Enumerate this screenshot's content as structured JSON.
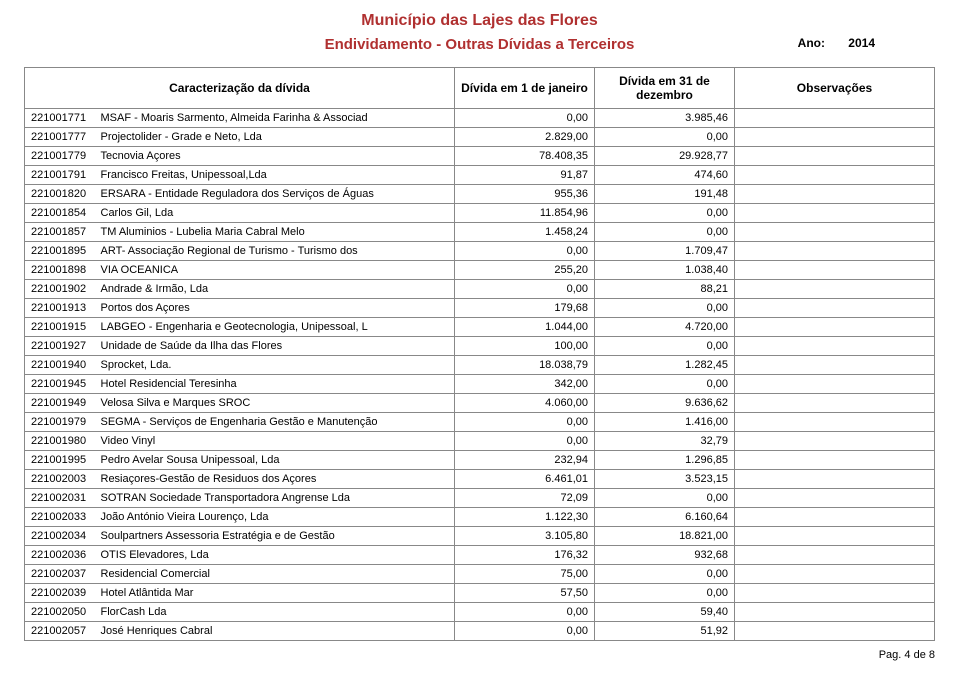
{
  "header": {
    "title": "Município das Lajes das Flores",
    "subtitle": "Endividamento - Outras Dívidas a Terceiros",
    "year_label": "Ano:",
    "year_value": "2014",
    "title_color": "#b03030"
  },
  "columns": {
    "caract": "Caracterização da dívida",
    "jan": "Dívida em 1 de janeiro",
    "dec": "Dívida em 31 de dezembro",
    "obs": "Observações"
  },
  "col_widths": {
    "code": 70,
    "jan": 140,
    "dec": 140,
    "obs": 200
  },
  "rows": [
    {
      "code": "221001771",
      "desc": "MSAF - Moaris Sarmento, Almeida Farinha & Associad",
      "jan": "0,00",
      "dec": "3.985,46",
      "obs": ""
    },
    {
      "code": "221001777",
      "desc": "Projectolider - Grade e Neto, Lda",
      "jan": "2.829,00",
      "dec": "0,00",
      "obs": ""
    },
    {
      "code": "221001779",
      "desc": "Tecnovia Açores",
      "jan": "78.408,35",
      "dec": "29.928,77",
      "obs": ""
    },
    {
      "code": "221001791",
      "desc": "Francisco Freitas, Unipessoal,Lda",
      "jan": "91,87",
      "dec": "474,60",
      "obs": ""
    },
    {
      "code": "221001820",
      "desc": "ERSARA - Entidade Reguladora dos Serviços de Águas",
      "jan": "955,36",
      "dec": "191,48",
      "obs": ""
    },
    {
      "code": "221001854",
      "desc": "Carlos Gil, Lda",
      "jan": "11.854,96",
      "dec": "0,00",
      "obs": ""
    },
    {
      "code": "221001857",
      "desc": "TM Aluminios - Lubelia Maria Cabral Melo",
      "jan": "1.458,24",
      "dec": "0,00",
      "obs": ""
    },
    {
      "code": "221001895",
      "desc": "ART- Associação Regional de Turismo - Turismo dos",
      "jan": "0,00",
      "dec": "1.709,47",
      "obs": ""
    },
    {
      "code": "221001898",
      "desc": "VIA OCEANICA",
      "jan": "255,20",
      "dec": "1.038,40",
      "obs": ""
    },
    {
      "code": "221001902",
      "desc": "Andrade & Irmão, Lda",
      "jan": "0,00",
      "dec": "88,21",
      "obs": ""
    },
    {
      "code": "221001913",
      "desc": "Portos dos Açores",
      "jan": "179,68",
      "dec": "0,00",
      "obs": ""
    },
    {
      "code": "221001915",
      "desc": "LABGEO - Engenharia e Geotecnologia, Unipessoal, L",
      "jan": "1.044,00",
      "dec": "4.720,00",
      "obs": ""
    },
    {
      "code": "221001927",
      "desc": "Unidade de Saúde da Ilha das Flores",
      "jan": "100,00",
      "dec": "0,00",
      "obs": ""
    },
    {
      "code": "221001940",
      "desc": "Sprocket, Lda.",
      "jan": "18.038,79",
      "dec": "1.282,45",
      "obs": ""
    },
    {
      "code": "221001945",
      "desc": "Hotel Residencial Teresinha",
      "jan": "342,00",
      "dec": "0,00",
      "obs": ""
    },
    {
      "code": "221001949",
      "desc": "Velosa Silva e Marques SROC",
      "jan": "4.060,00",
      "dec": "9.636,62",
      "obs": ""
    },
    {
      "code": "221001979",
      "desc": "SEGMA - Serviços de Engenharia Gestão e Manutenção",
      "jan": "0,00",
      "dec": "1.416,00",
      "obs": ""
    },
    {
      "code": "221001980",
      "desc": "Video Vinyl",
      "jan": "0,00",
      "dec": "32,79",
      "obs": ""
    },
    {
      "code": "221001995",
      "desc": "Pedro Avelar Sousa Unipessoal, Lda",
      "jan": "232,94",
      "dec": "1.296,85",
      "obs": ""
    },
    {
      "code": "221002003",
      "desc": "Resiaçores-Gestão de Residuos dos Açores",
      "jan": "6.461,01",
      "dec": "3.523,15",
      "obs": ""
    },
    {
      "code": "221002031",
      "desc": "SOTRAN Sociedade Transportadora Angrense Lda",
      "jan": "72,09",
      "dec": "0,00",
      "obs": ""
    },
    {
      "code": "221002033",
      "desc": "João António Vieira Lourenço, Lda",
      "jan": "1.122,30",
      "dec": "6.160,64",
      "obs": ""
    },
    {
      "code": "221002034",
      "desc": "Soulpartners Assessoria Estratégia e de Gestão",
      "jan": "3.105,80",
      "dec": "18.821,00",
      "obs": ""
    },
    {
      "code": "221002036",
      "desc": "OTIS Elevadores, Lda",
      "jan": "176,32",
      "dec": "932,68",
      "obs": ""
    },
    {
      "code": "221002037",
      "desc": "Residencial Comercial",
      "jan": "75,00",
      "dec": "0,00",
      "obs": ""
    },
    {
      "code": "221002039",
      "desc": "Hotel Atlântida Mar",
      "jan": "57,50",
      "dec": "0,00",
      "obs": ""
    },
    {
      "code": "221002050",
      "desc": "FlorCash Lda",
      "jan": "0,00",
      "dec": "59,40",
      "obs": ""
    },
    {
      "code": "221002057",
      "desc": "José Henriques Cabral",
      "jan": "0,00",
      "dec": "51,92",
      "obs": ""
    }
  ],
  "footer": {
    "page": "Pag. 4 de 8"
  },
  "styling": {
    "border_color": "#888888",
    "background": "#ffffff",
    "body_font_size": 11,
    "header_font_size": 12
  }
}
